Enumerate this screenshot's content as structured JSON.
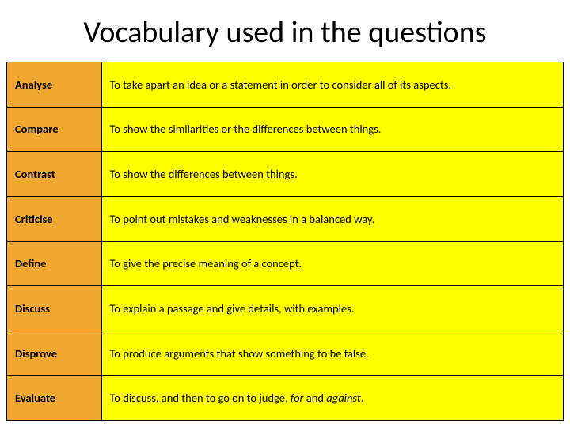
{
  "slide": {
    "title": "Vocabulary used in the questions",
    "title_fontsize": 38,
    "title_color": "#000000",
    "background_color": "#ffffff"
  },
  "table": {
    "type": "table",
    "term_bg_color": "#f0a830",
    "definition_bg_color": "#ffff00",
    "border_color": "#000000",
    "text_color": "#000000",
    "cell_fontsize": 14.5,
    "term_font_weight": "bold",
    "columns": [
      "term",
      "definition"
    ],
    "column_widths": [
      "17%",
      "83%"
    ],
    "rows": [
      {
        "term": "Analyse",
        "definition": "To take apart an idea or a statement in order to consider all of its aspects."
      },
      {
        "term": "Compare",
        "definition": "To show the similarities or the differences between things."
      },
      {
        "term": "Contrast",
        "definition": "To show the differences between things."
      },
      {
        "term": "Criticise",
        "definition": "To point out mistakes and weaknesses in a balanced way."
      },
      {
        "term": "Define",
        "definition": "To give the precise meaning of a concept."
      },
      {
        "term": "Discuss",
        "definition": "To explain a passage and give details, with examples."
      },
      {
        "term": "Disprove",
        "definition": "To produce arguments that show something to be false."
      },
      {
        "term": "Evaluate",
        "definition_prefix": "To discuss, and then to go on to judge, ",
        "definition_italic1": "for",
        "definition_mid": " and ",
        "definition_italic2": "against",
        "definition_suffix": "."
      }
    ]
  }
}
